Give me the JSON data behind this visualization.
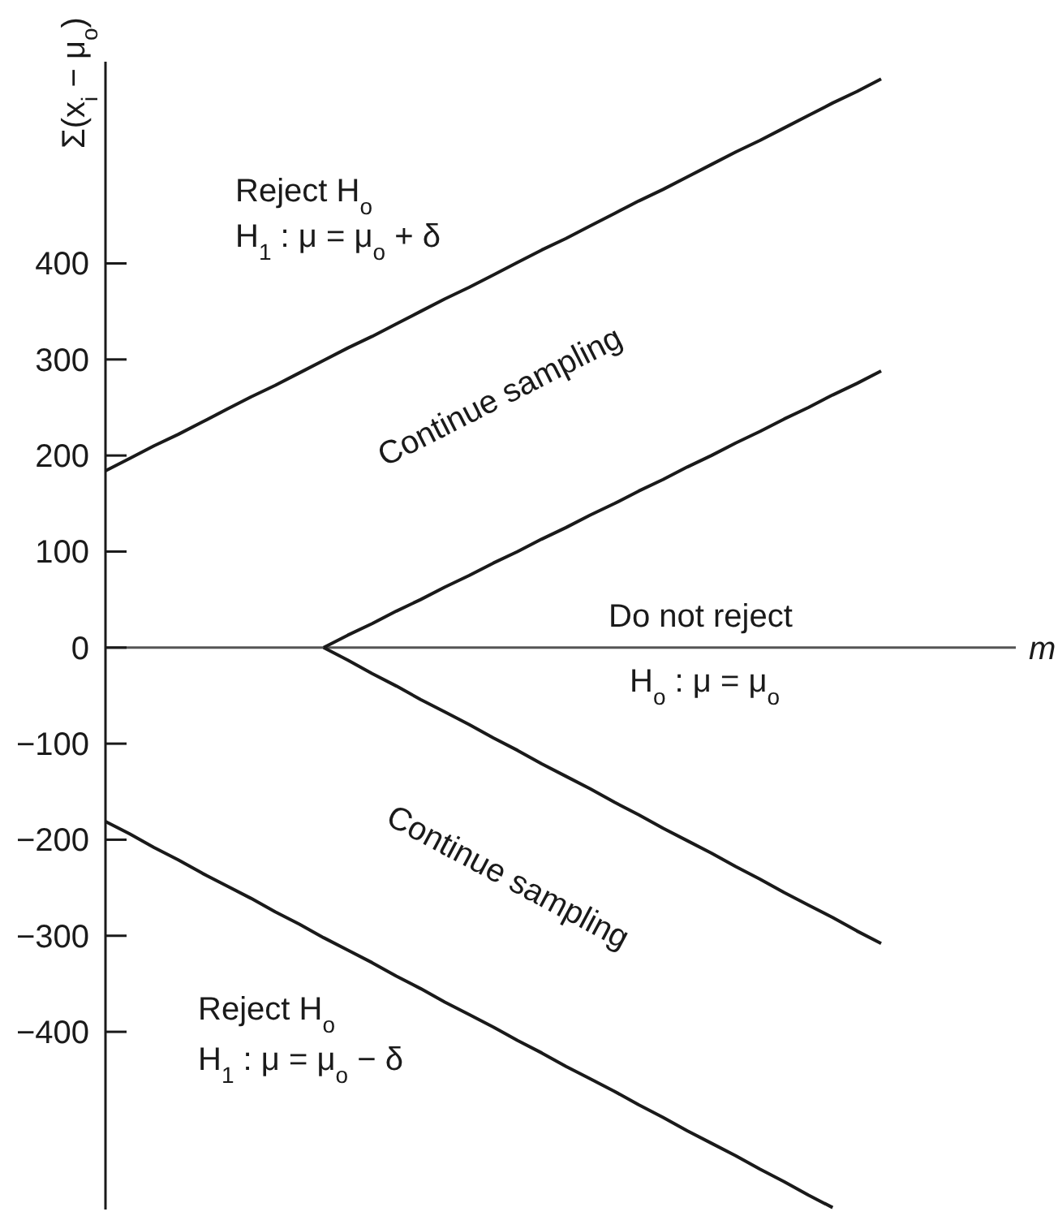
{
  "chart_data": {
    "type": "line",
    "xlabel": "m",
    "ylabel": "Σ(x$_{i}$ − μ$_{o}$)",
    "categories": [
      null,
      null,
      null,
      null,
      null,
      null,
      null,
      null,
      null,
      null,
      null,
      null,
      null,
      null,
      null,
      null,
      null,
      null,
      null,
      null,
      null,
      null,
      null,
      null,
      null,
      null,
      null,
      null,
      null,
      null,
      null,
      null,
      null
    ],
    "ylim": [
      -585,
      610
    ],
    "yticks": [
      -400,
      -300,
      -200,
      -100,
      0,
      100,
      200,
      300,
      400
    ],
    "tick_labels": "y",
    "series": [
      {
        "color": "#1a1a1a",
        "values": [
          184,
          197,
          210,
          222,
          235,
          248,
          261,
          273,
          286,
          299,
          312,
          324,
          337,
          350,
          363,
          375,
          388,
          401,
          414,
          426,
          439,
          452,
          465,
          477,
          490,
          503,
          516,
          528,
          541,
          554,
          567,
          579,
          592
        ]
      },
      {
        "color": "#1a1a1a",
        "values": [
          null,
          null,
          null,
          null,
          null,
          null,
          null,
          null,
          null,
          0,
          13,
          25,
          38,
          50,
          63,
          75,
          88,
          100,
          113,
          125,
          138,
          150,
          163,
          175,
          188,
          200,
          213,
          225,
          238,
          250,
          263,
          275,
          288
        ]
      },
      {
        "color": "#1a1a1a",
        "values": [
          null,
          null,
          null,
          null,
          null,
          null,
          null,
          null,
          null,
          0,
          -13,
          -27,
          -40,
          -54,
          -67,
          -80,
          -94,
          -107,
          -121,
          -134,
          -147,
          -161,
          -174,
          -188,
          -201,
          -214,
          -228,
          -241,
          -255,
          -268,
          -281,
          -295,
          -308
        ]
      },
      {
        "color": "#1a1a1a",
        "values": [
          -181,
          -194,
          -208,
          -221,
          -235,
          -248,
          -261,
          -275,
          -288,
          -302,
          -315,
          -328,
          -342,
          -355,
          -369,
          -382,
          -395,
          -409,
          -422,
          -436,
          -449,
          -462,
          -476,
          -489,
          -503,
          -516,
          -529,
          -543,
          -556,
          -570,
          -583,
          null,
          null
        ]
      }
    ],
    "annotations": [
      "Reject H$_{o}$",
      "H$_{1}$ : μ = μ$_{o}$ + δ",
      "Continue sampling",
      "Do not reject",
      "H$_{o}$ : μ = μ$_{o}$",
      "Continue sampling",
      "Reject H$_{o}$",
      "H$_{1}$ : μ = μ$_{o}$ − δ"
    ]
  }
}
